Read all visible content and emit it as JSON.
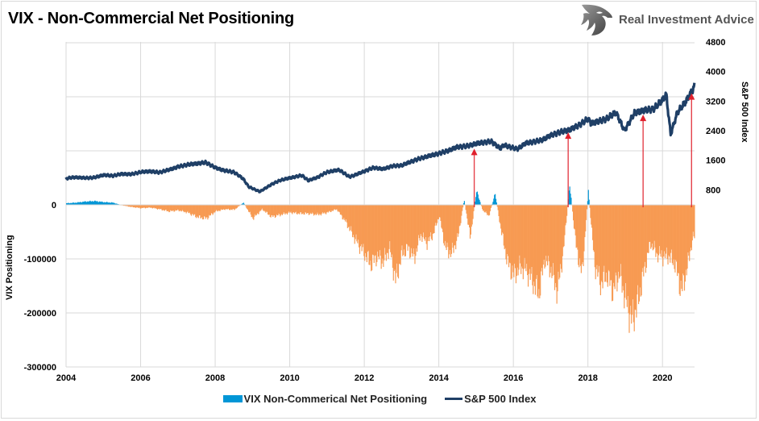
{
  "header": {
    "title": "VIX - Non-Commercial Net Positioning",
    "brand": "Real Investment Advice",
    "brand_logo_icon": "eagle-shield-logo-icon"
  },
  "colors": {
    "positive_bar": "#0096d6",
    "negative_bar": "#f79a52",
    "sp500_line": "#1f3f66",
    "arrow": "#e0202c",
    "grid": "#d9d9d9"
  },
  "chart_data": {
    "type": "bar+line",
    "title": "VIX - Non-Commercial Net Positioning",
    "xlabel": "",
    "ylabel": "VIX Positioning",
    "y2label": "S&P 500 Index",
    "xlim": [
      2004,
      2020.86
    ],
    "ylim": [
      -300000,
      300000
    ],
    "y2lim": [
      0,
      4800
    ],
    "x_ticks": [
      "2004",
      "2006",
      "2008",
      "2010",
      "2012",
      "2014",
      "2016",
      "2018",
      "2020"
    ],
    "y_ticks": [
      "0",
      "-100000",
      "-200000",
      "-300000"
    ],
    "y2_ticks": [
      "4800",
      "4000",
      "3200",
      "2400",
      "1600",
      "800"
    ],
    "grid": true,
    "legend": {
      "placement": "bottom",
      "entries": [
        "VIX Non-Commerical Net Positioning",
        "S&P 500 Index"
      ]
    },
    "series": [
      {
        "name": "VIX Non-Commerical Net Positioning",
        "type": "bar",
        "x": [
          2004.0,
          2004.25,
          2004.5,
          2004.75,
          2005.0,
          2005.25,
          2005.5,
          2005.75,
          2006.0,
          2006.25,
          2006.5,
          2006.75,
          2007.0,
          2007.25,
          2007.5,
          2007.75,
          2008.0,
          2008.25,
          2008.5,
          2008.75,
          2009.0,
          2009.25,
          2009.5,
          2009.75,
          2010.0,
          2010.25,
          2010.5,
          2010.75,
          2011.0,
          2011.25,
          2011.5,
          2011.75,
          2012.0,
          2012.17,
          2012.33,
          2012.5,
          2012.67,
          2012.83,
          2013.0,
          2013.17,
          2013.33,
          2013.5,
          2013.67,
          2013.83,
          2014.0,
          2014.17,
          2014.33,
          2014.5,
          2014.67,
          2014.83,
          2015.0,
          2015.17,
          2015.33,
          2015.5,
          2015.67,
          2015.83,
          2016.0,
          2016.17,
          2016.33,
          2016.5,
          2016.67,
          2016.83,
          2017.0,
          2017.17,
          2017.33,
          2017.5,
          2017.67,
          2017.83,
          2018.0,
          2018.17,
          2018.33,
          2018.5,
          2018.67,
          2018.83,
          2019.0,
          2019.17,
          2019.33,
          2019.5,
          2019.67,
          2019.83,
          2020.0,
          2020.17,
          2020.33,
          2020.5,
          2020.67,
          2020.8
        ],
        "values": [
          3000,
          4000,
          6000,
          7000,
          5000,
          4000,
          -1000,
          -4000,
          -6000,
          -5000,
          -8000,
          -12000,
          -10000,
          -14000,
          -22000,
          -25000,
          -12000,
          -8000,
          -9000,
          4000,
          -25000,
          -8000,
          -22000,
          -18000,
          -14000,
          -16000,
          -16000,
          -18000,
          -14000,
          -8000,
          -32000,
          -64000,
          -90000,
          -110000,
          -95000,
          -105000,
          -80000,
          -140000,
          -90000,
          -80000,
          -98000,
          -55000,
          -70000,
          -55000,
          -20000,
          -80000,
          -90000,
          -60000,
          10000,
          -60000,
          25000,
          -10000,
          -20000,
          20000,
          -50000,
          -105000,
          -130000,
          -115000,
          -120000,
          -140000,
          -165000,
          -100000,
          -120000,
          -160000,
          -85000,
          38000,
          -75000,
          -130000,
          25000,
          -110000,
          -145000,
          -130000,
          -160000,
          -125000,
          -175000,
          -215000,
          -180000,
          -120000,
          -70000,
          -90000,
          -95000,
          -95000,
          -110000,
          -160000,
          -110000,
          -60000
        ]
      },
      {
        "name": "S&P 500 Index",
        "type": "line",
        "x": [
          2004.0,
          2004.25,
          2004.5,
          2004.75,
          2005.0,
          2005.25,
          2005.5,
          2005.75,
          2006.0,
          2006.25,
          2006.5,
          2006.75,
          2007.0,
          2007.25,
          2007.5,
          2007.75,
          2008.0,
          2008.25,
          2008.5,
          2008.75,
          2008.9,
          2009.2,
          2009.5,
          2009.75,
          2010.0,
          2010.33,
          2010.5,
          2010.75,
          2011.0,
          2011.33,
          2011.6,
          2011.75,
          2012.0,
          2012.25,
          2012.5,
          2012.75,
          2013.0,
          2013.25,
          2013.5,
          2013.75,
          2014.0,
          2014.25,
          2014.5,
          2014.75,
          2015.0,
          2015.4,
          2015.65,
          2015.75,
          2016.1,
          2016.33,
          2016.5,
          2016.75,
          2017.0,
          2017.25,
          2017.5,
          2017.75,
          2018.0,
          2018.08,
          2018.25,
          2018.5,
          2018.75,
          2018.98,
          2019.25,
          2019.5,
          2019.75,
          2020.0,
          2020.1,
          2020.22,
          2020.4,
          2020.6,
          2020.75,
          2020.86
        ],
        "values": [
          1110,
          1140,
          1120,
          1130,
          1200,
          1180,
          1230,
          1220,
          1280,
          1300,
          1270,
          1340,
          1420,
          1480,
          1510,
          1540,
          1400,
          1320,
          1280,
          1100,
          880,
          750,
          940,
          1060,
          1120,
          1190,
          1050,
          1140,
          1280,
          1340,
          1150,
          1200,
          1300,
          1400,
          1360,
          1440,
          1460,
          1560,
          1650,
          1720,
          1780,
          1860,
          1960,
          1980,
          2050,
          2110,
          1920,
          2010,
          1900,
          2060,
          2090,
          2140,
          2270,
          2360,
          2420,
          2540,
          2720,
          2600,
          2640,
          2720,
          2900,
          2400,
          2880,
          2950,
          2980,
          3230,
          3380,
          2300,
          2900,
          3150,
          3400,
          3600
        ]
      }
    ],
    "annotations": [
      {
        "type": "arrow",
        "x": 2014.95,
        "from_value": 0,
        "to_sp500": 2000
      },
      {
        "type": "arrow",
        "x": 2017.47,
        "from_value": 0,
        "to_sp500": 2440
      },
      {
        "type": "arrow",
        "x": 2019.48,
        "from_value": 0,
        "to_sp500": 2920
      },
      {
        "type": "arrow",
        "x": 2020.78,
        "from_value": 0,
        "to_sp500": 3500
      }
    ]
  }
}
